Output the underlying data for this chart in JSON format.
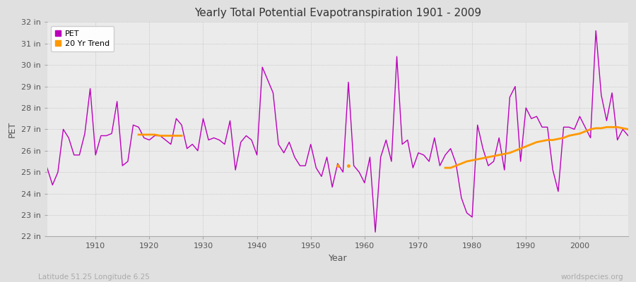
{
  "title": "Yearly Total Potential Evapotranspiration 1901 - 2009",
  "xlabel": "Year",
  "ylabel": "PET",
  "x_label_bottom": "Latitude 51.25 Longitude 6.25",
  "x_label_right": "worldspecies.org",
  "pet_color": "#bb00bb",
  "trend_color": "#ff9900",
  "bg_color": "#ebebeb",
  "fig_color": "#e0e0e0",
  "ylim": [
    22,
    32
  ],
  "yticks": [
    22,
    23,
    24,
    25,
    26,
    27,
    28,
    29,
    30,
    31,
    32
  ],
  "xlim": [
    1901,
    2009
  ],
  "xticks": [
    1910,
    1920,
    1930,
    1940,
    1950,
    1960,
    1970,
    1980,
    1990,
    2000
  ],
  "years": [
    1901,
    1902,
    1903,
    1904,
    1905,
    1906,
    1907,
    1908,
    1909,
    1910,
    1911,
    1912,
    1913,
    1914,
    1915,
    1916,
    1917,
    1918,
    1919,
    1920,
    1921,
    1922,
    1923,
    1924,
    1925,
    1926,
    1927,
    1928,
    1929,
    1930,
    1931,
    1932,
    1933,
    1934,
    1935,
    1936,
    1937,
    1938,
    1939,
    1940,
    1941,
    1942,
    1943,
    1944,
    1945,
    1946,
    1947,
    1948,
    1949,
    1950,
    1951,
    1952,
    1953,
    1954,
    1955,
    1956,
    1957,
    1958,
    1959,
    1960,
    1961,
    1962,
    1963,
    1964,
    1965,
    1966,
    1967,
    1968,
    1969,
    1970,
    1971,
    1972,
    1973,
    1974,
    1975,
    1976,
    1977,
    1978,
    1979,
    1980,
    1981,
    1982,
    1983,
    1984,
    1985,
    1986,
    1987,
    1988,
    1989,
    1990,
    1991,
    1992,
    1993,
    1994,
    1995,
    1996,
    1997,
    1998,
    1999,
    2000,
    2001,
    2002,
    2003,
    2004,
    2005,
    2006,
    2007,
    2008,
    2009
  ],
  "pet_values": [
    25.2,
    24.4,
    25.0,
    27.0,
    26.6,
    25.8,
    25.8,
    26.8,
    28.9,
    25.8,
    26.7,
    26.7,
    26.8,
    28.3,
    25.3,
    25.5,
    27.2,
    27.1,
    26.6,
    26.5,
    26.7,
    26.7,
    26.5,
    26.3,
    27.5,
    27.2,
    26.1,
    26.3,
    26.0,
    27.5,
    26.5,
    26.6,
    26.5,
    26.3,
    27.4,
    25.1,
    26.4,
    26.7,
    26.5,
    25.8,
    29.9,
    29.3,
    28.7,
    26.3,
    25.9,
    26.4,
    25.7,
    25.3,
    25.3,
    26.3,
    25.2,
    24.8,
    25.7,
    24.3,
    25.4,
    25.0,
    29.2,
    25.3,
    25.0,
    24.5,
    25.7,
    22.2,
    25.7,
    26.5,
    25.5,
    30.4,
    26.3,
    26.5,
    25.2,
    25.9,
    25.8,
    25.5,
    26.6,
    25.3,
    25.8,
    26.1,
    25.4,
    23.8,
    23.1,
    22.9,
    27.2,
    26.1,
    25.3,
    25.5,
    26.6,
    25.1,
    28.5,
    29.0,
    25.5,
    28.0,
    27.5,
    27.6,
    27.1,
    27.1,
    25.1,
    24.1,
    27.1,
    27.1,
    27.0,
    27.6,
    27.1,
    26.6,
    31.6,
    28.6,
    27.4,
    28.7,
    26.5,
    27.0,
    26.7
  ],
  "trend_seg1_years": [
    1918,
    1919,
    1920,
    1921,
    1922,
    1923,
    1924,
    1925,
    1926
  ],
  "trend_seg1_vals": [
    26.75,
    26.75,
    26.75,
    26.75,
    26.7,
    26.7,
    26.7,
    26.7,
    26.7
  ],
  "trend_dots_years": [
    1955,
    1957
  ],
  "trend_dots_vals": [
    25.3,
    25.3
  ],
  "trend_seg2_years": [
    1975,
    1976,
    1977,
    1978,
    1979,
    1980,
    1981,
    1982,
    1983,
    1984,
    1985,
    1986,
    1987,
    1988,
    1989,
    1990,
    1991,
    1992,
    1993,
    1994,
    1995,
    1996,
    1997,
    1998,
    1999,
    2000,
    2001,
    2002,
    2003,
    2004,
    2005,
    2006,
    2007,
    2008,
    2009
  ],
  "trend_seg2_vals": [
    25.2,
    25.2,
    25.3,
    25.4,
    25.5,
    25.55,
    25.6,
    25.65,
    25.7,
    25.75,
    25.8,
    25.85,
    25.9,
    26.0,
    26.1,
    26.2,
    26.3,
    26.4,
    26.45,
    26.5,
    26.5,
    26.55,
    26.6,
    26.7,
    26.75,
    26.8,
    26.9,
    27.0,
    27.05,
    27.05,
    27.1,
    27.1,
    27.1,
    27.05,
    27.0
  ]
}
